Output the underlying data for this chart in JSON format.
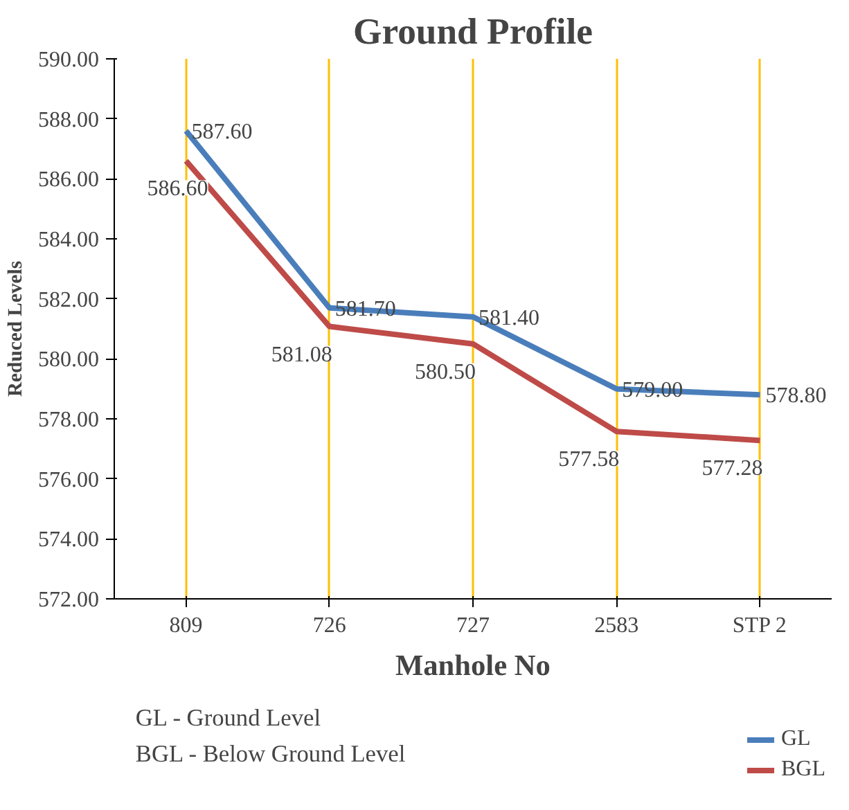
{
  "chart_data": {
    "type": "line",
    "title": "Ground Profile",
    "xlabel": "Manhole No",
    "ylabel": "Reduced Levels",
    "categories": [
      "809",
      "726",
      "727",
      "2583",
      "STP 2"
    ],
    "series": [
      {
        "name": "GL",
        "color": "#4a7ebb",
        "values": [
          587.6,
          581.7,
          581.4,
          579.0,
          578.8
        ],
        "value_labels": [
          "587.60",
          "581.70",
          "581.40",
          "579.00",
          "578.80"
        ]
      },
      {
        "name": "BGL",
        "color": "#be4b48",
        "values": [
          586.6,
          581.08,
          580.5,
          577.58,
          577.28
        ],
        "value_labels": [
          "586.60",
          "581.08",
          "580.50",
          "577.58",
          "577.28"
        ]
      }
    ],
    "ylim": [
      572,
      590
    ],
    "yticks": [
      {
        "value": 572,
        "label": "572.00"
      },
      {
        "value": 574,
        "label": "574.00"
      },
      {
        "value": 576,
        "label": "576.00"
      },
      {
        "value": 578,
        "label": "578.00"
      },
      {
        "value": 580,
        "label": "580.00"
      },
      {
        "value": 582,
        "label": "582.00"
      },
      {
        "value": 584,
        "label": "584.00"
      },
      {
        "value": 586,
        "label": "586.00"
      },
      {
        "value": 588,
        "label": "588.00"
      },
      {
        "value": 590,
        "label": "590.00"
      }
    ],
    "grid": "x",
    "legend": "bottom right",
    "marker": "none",
    "line_style": "solid",
    "annotations": [
      "GL - Ground Level",
      "BGL - Below Ground Level"
    ]
  }
}
